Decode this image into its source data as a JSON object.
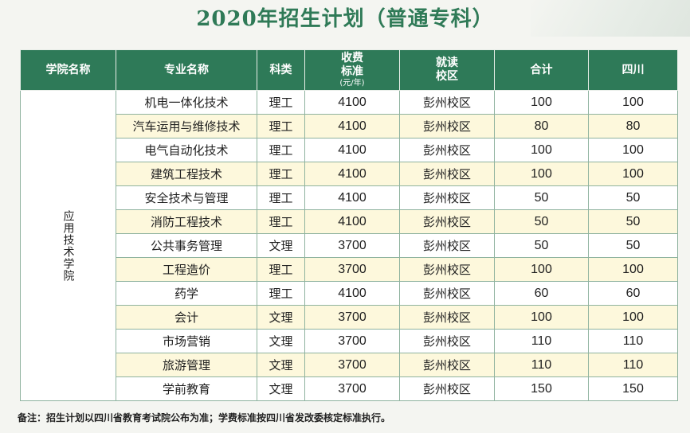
{
  "title": "2020年招生计划（普通专科）",
  "headers": {
    "college": "学院名称",
    "major": "专业名称",
    "subject": "科类",
    "fee_line1": "收费",
    "fee_line2": "标准",
    "fee_unit": "(元/年)",
    "campus_line1": "就读",
    "campus_line2": "校区",
    "total": "合计",
    "sichuan": "四川"
  },
  "college_name": "应用技术学院",
  "rows": [
    {
      "major": "机电一体化技术",
      "subject": "理工",
      "fee": "4100",
      "campus": "彭州校区",
      "total": "100",
      "sichuan": "100"
    },
    {
      "major": "汽车运用与维修技术",
      "subject": "理工",
      "fee": "4100",
      "campus": "彭州校区",
      "total": "80",
      "sichuan": "80"
    },
    {
      "major": "电气自动化技术",
      "subject": "理工",
      "fee": "4100",
      "campus": "彭州校区",
      "total": "100",
      "sichuan": "100"
    },
    {
      "major": "建筑工程技术",
      "subject": "理工",
      "fee": "4100",
      "campus": "彭州校区",
      "total": "100",
      "sichuan": "100"
    },
    {
      "major": "安全技术与管理",
      "subject": "理工",
      "fee": "4100",
      "campus": "彭州校区",
      "total": "50",
      "sichuan": "50"
    },
    {
      "major": "消防工程技术",
      "subject": "理工",
      "fee": "4100",
      "campus": "彭州校区",
      "total": "50",
      "sichuan": "50"
    },
    {
      "major": "公共事务管理",
      "subject": "文理",
      "fee": "3700",
      "campus": "彭州校区",
      "total": "50",
      "sichuan": "50"
    },
    {
      "major": "工程造价",
      "subject": "理工",
      "fee": "3700",
      "campus": "彭州校区",
      "total": "100",
      "sichuan": "100"
    },
    {
      "major": "药学",
      "subject": "理工",
      "fee": "4100",
      "campus": "彭州校区",
      "total": "60",
      "sichuan": "60"
    },
    {
      "major": "会计",
      "subject": "文理",
      "fee": "3700",
      "campus": "彭州校区",
      "total": "100",
      "sichuan": "100"
    },
    {
      "major": "市场营销",
      "subject": "文理",
      "fee": "3700",
      "campus": "彭州校区",
      "total": "110",
      "sichuan": "110"
    },
    {
      "major": "旅游管理",
      "subject": "文理",
      "fee": "3700",
      "campus": "彭州校区",
      "total": "110",
      "sichuan": "110"
    },
    {
      "major": "学前教育",
      "subject": "文理",
      "fee": "3700",
      "campus": "彭州校区",
      "total": "150",
      "sichuan": "150"
    }
  ],
  "note": "备注：招生计划以四川省教育考试院公布为准；学费标准按四川省发改委核定标准执行。",
  "colors": {
    "header_bg": "#2e7a58",
    "alt_row": "#fdf8dc",
    "title": "#2f7a57"
  }
}
